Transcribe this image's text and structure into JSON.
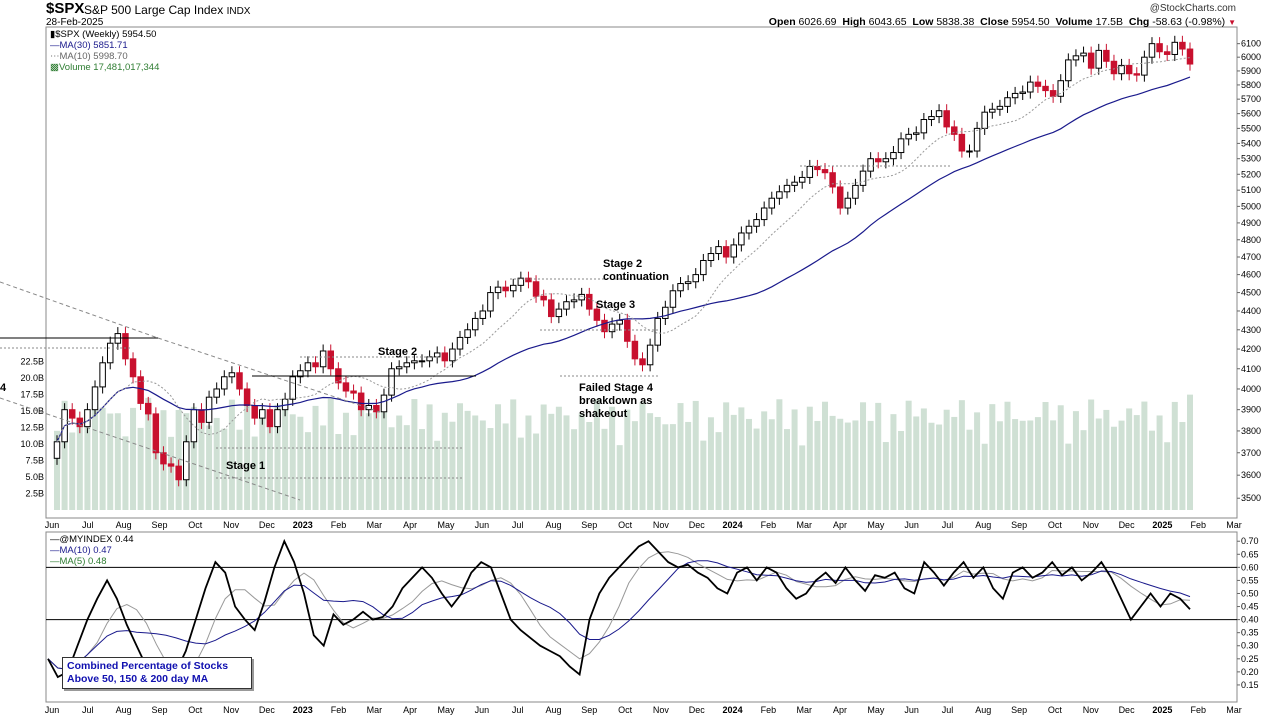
{
  "header": {
    "symbol": "$SPX",
    "name": "S&P 500 Large Cap Index",
    "exchange": "INDX",
    "date": "28-Feb-2025",
    "brand": "@StockCharts.com",
    "open_label": "Open",
    "open": "6026.69",
    "high_label": "High",
    "high": "6043.65",
    "low_label": "Low",
    "low": "5838.38",
    "close_label": "Close",
    "close": "5954.50",
    "volume_label": "Volume",
    "volume": "17.5B",
    "chg_label": "Chg",
    "chg": "-58.63 (-0.98%)"
  },
  "legend_top": [
    {
      "text": "$SPX (Weekly) 5954.50",
      "color": "#000000"
    },
    {
      "text": "MA(30) 5851.71",
      "color": "#1a1a8c"
    },
    {
      "text": "MA(10) 5998.70",
      "color": "#666666"
    },
    {
      "text": "Volume 17,481,017,344",
      "color": "#2e7d32"
    }
  ],
  "legend_bottom": [
    {
      "text": "@MYINDEX 0.44",
      "color": "#000000"
    },
    {
      "text": "MA(10) 0.47",
      "color": "#1a1a8c"
    },
    {
      "text": "MA(5) 0.48",
      "color": "#666666"
    }
  ],
  "annotations": {
    "stage1": "Stage 1",
    "stage2": "Stage 2",
    "stage2c_line1": "Stage 2",
    "stage2c_line2": "continuation",
    "stage3": "Stage 3",
    "failed_line1": "Failed Stage 4",
    "failed_line2": "breakdown as",
    "failed_line3": "shakeout",
    "left_edge": "4"
  },
  "note": {
    "line1": "Combined Percentage of Stocks",
    "line2": "Above 50, 150 & 200 day MA"
  },
  "colors": {
    "up": "#000000",
    "down": "#c8102e",
    "ma30": "#1a1a8c",
    "ma10": "#999999",
    "volume": "#cfe0d4",
    "index": "#000000",
    "index_ma10": "#1a1a8c",
    "index_ma5": "#999999"
  },
  "chart_data": [
    {
      "type": "candlestick",
      "title": "$SPX S&P 500 Large Cap Index (Weekly)",
      "scale": "log",
      "ylim": [
        3450,
        6180
      ],
      "yticks": [
        3500,
        3600,
        3700,
        3800,
        3900,
        4000,
        4100,
        4200,
        4300,
        4400,
        4500,
        4600,
        4700,
        4800,
        4900,
        5000,
        5100,
        5200,
        5300,
        5400,
        5500,
        5600,
        5700,
        5800,
        5900,
        6000,
        6100
      ],
      "x_labels": [
        "Jun",
        "Jul",
        "Aug",
        "Sep",
        "Oct",
        "Nov",
        "Dec",
        "2023",
        "Feb",
        "Mar",
        "Apr",
        "May",
        "Jun",
        "Jul",
        "Aug",
        "Sep",
        "Oct",
        "Nov",
        "Dec",
        "2024",
        "Feb",
        "Mar",
        "Apr",
        "May",
        "Jun",
        "Jul",
        "Aug",
        "Sep",
        "Oct",
        "Nov",
        "Dec",
        "2025",
        "Feb",
        "Mar"
      ],
      "series": [
        {
          "name": "$SPX",
          "kind": "candles",
          "note": "weekly closes Jun 2022 - Feb 2025",
          "close": [
            3750,
            3900,
            3860,
            3820,
            3900,
            4010,
            4130,
            4230,
            4280,
            4150,
            4060,
            3930,
            3880,
            3700,
            3650,
            3640,
            3580,
            3750,
            3900,
            3840,
            3960,
            4000,
            4060,
            4080,
            4000,
            3920,
            3860,
            3900,
            3820,
            3900,
            3950,
            4060,
            4090,
            4130,
            4110,
            4190,
            4100,
            4030,
            3990,
            3980,
            3900,
            3920,
            3890,
            3970,
            4100,
            4110,
            4130,
            4140,
            4140,
            4160,
            4180,
            4140,
            4200,
            4260,
            4300,
            4360,
            4400,
            4500,
            4530,
            4510,
            4540,
            4580,
            4560,
            4480,
            4460,
            4370,
            4410,
            4450,
            4460,
            4490,
            4410,
            4350,
            4290,
            4330,
            4350,
            4240,
            4150,
            4120,
            4220,
            4360,
            4420,
            4510,
            4550,
            4560,
            4600,
            4680,
            4720,
            4760,
            4700,
            4770,
            4840,
            4880,
            4920,
            4990,
            5050,
            5090,
            5130,
            5150,
            5180,
            5250,
            5230,
            5210,
            5120,
            4990,
            5050,
            5130,
            5220,
            5300,
            5280,
            5300,
            5340,
            5430,
            5460,
            5470,
            5560,
            5580,
            5620,
            5510,
            5460,
            5350,
            5350,
            5500,
            5610,
            5630,
            5650,
            5710,
            5740,
            5750,
            5820,
            5790,
            5760,
            5720,
            5830,
            5980,
            6010,
            6030,
            5920,
            6050,
            5970,
            5880,
            5940,
            5880,
            5870,
            6000,
            6100,
            6040,
            6020,
            6110,
            6060,
            5950
          ]
        },
        {
          "name": "MA(30)",
          "kind": "line",
          "last": 5851.71
        },
        {
          "name": "MA(10)",
          "kind": "line",
          "last": 5998.7
        }
      ]
    },
    {
      "type": "bar",
      "title": "Volume",
      "ylim": [
        0,
        25
      ],
      "ylabel": "B",
      "yticks": [
        "2.5B",
        "5.0B",
        "7.5B",
        "10.0B",
        "12.5B",
        "15.0B",
        "17.5B",
        "20.0B",
        "22.5B"
      ],
      "series": [
        {
          "name": "Volume",
          "last": 17.48
        }
      ]
    },
    {
      "type": "line",
      "title": "@MYINDEX",
      "ylim": [
        0.1,
        0.72
      ],
      "yticks": [
        0.15,
        0.2,
        0.25,
        0.3,
        0.35,
        0.4,
        0.45,
        0.5,
        0.55,
        0.6,
        0.65,
        0.7
      ],
      "hlines": [
        0.4,
        0.6
      ],
      "x_labels": [
        "Jun",
        "Jul",
        "Aug",
        "Sep",
        "Oct",
        "Nov",
        "Dec",
        "2023",
        "Feb",
        "Mar",
        "Apr",
        "May",
        "Jun",
        "Jul",
        "Aug",
        "Sep",
        "Oct",
        "Nov",
        "Dec",
        "2024",
        "Feb",
        "Mar",
        "Apr",
        "May",
        "Jun",
        "Jul",
        "Aug",
        "Sep",
        "Oct",
        "Nov",
        "Dec",
        "2025",
        "Feb",
        "Mar"
      ],
      "series": [
        {
          "name": "@MYINDEX",
          "last": 0.44,
          "values": [
            0.25,
            0.18,
            0.2,
            0.3,
            0.4,
            0.48,
            0.55,
            0.48,
            0.38,
            0.3,
            0.22,
            0.15,
            0.14,
            0.2,
            0.28,
            0.4,
            0.52,
            0.62,
            0.58,
            0.45,
            0.4,
            0.36,
            0.47,
            0.6,
            0.7,
            0.62,
            0.5,
            0.34,
            0.3,
            0.42,
            0.38,
            0.4,
            0.43,
            0.4,
            0.41,
            0.45,
            0.52,
            0.56,
            0.6,
            0.56,
            0.5,
            0.45,
            0.5,
            0.58,
            0.62,
            0.6,
            0.5,
            0.4,
            0.36,
            0.33,
            0.3,
            0.28,
            0.26,
            0.22,
            0.19,
            0.4,
            0.5,
            0.56,
            0.6,
            0.64,
            0.68,
            0.7,
            0.66,
            0.62,
            0.6,
            0.61,
            0.58,
            0.56,
            0.52,
            0.5,
            0.58,
            0.6,
            0.55,
            0.6,
            0.58,
            0.52,
            0.48,
            0.5,
            0.55,
            0.58,
            0.54,
            0.6,
            0.55,
            0.51,
            0.57,
            0.56,
            0.58,
            0.52,
            0.5,
            0.62,
            0.58,
            0.53,
            0.58,
            0.62,
            0.56,
            0.6,
            0.52,
            0.48,
            0.58,
            0.6,
            0.56,
            0.58,
            0.62,
            0.57,
            0.6,
            0.55,
            0.58,
            0.62,
            0.56,
            0.48,
            0.4,
            0.45,
            0.5,
            0.45,
            0.5,
            0.48,
            0.44
          ]
        },
        {
          "name": "MA(10)",
          "last": 0.47
        },
        {
          "name": "MA(5)",
          "last": 0.48
        }
      ]
    }
  ]
}
